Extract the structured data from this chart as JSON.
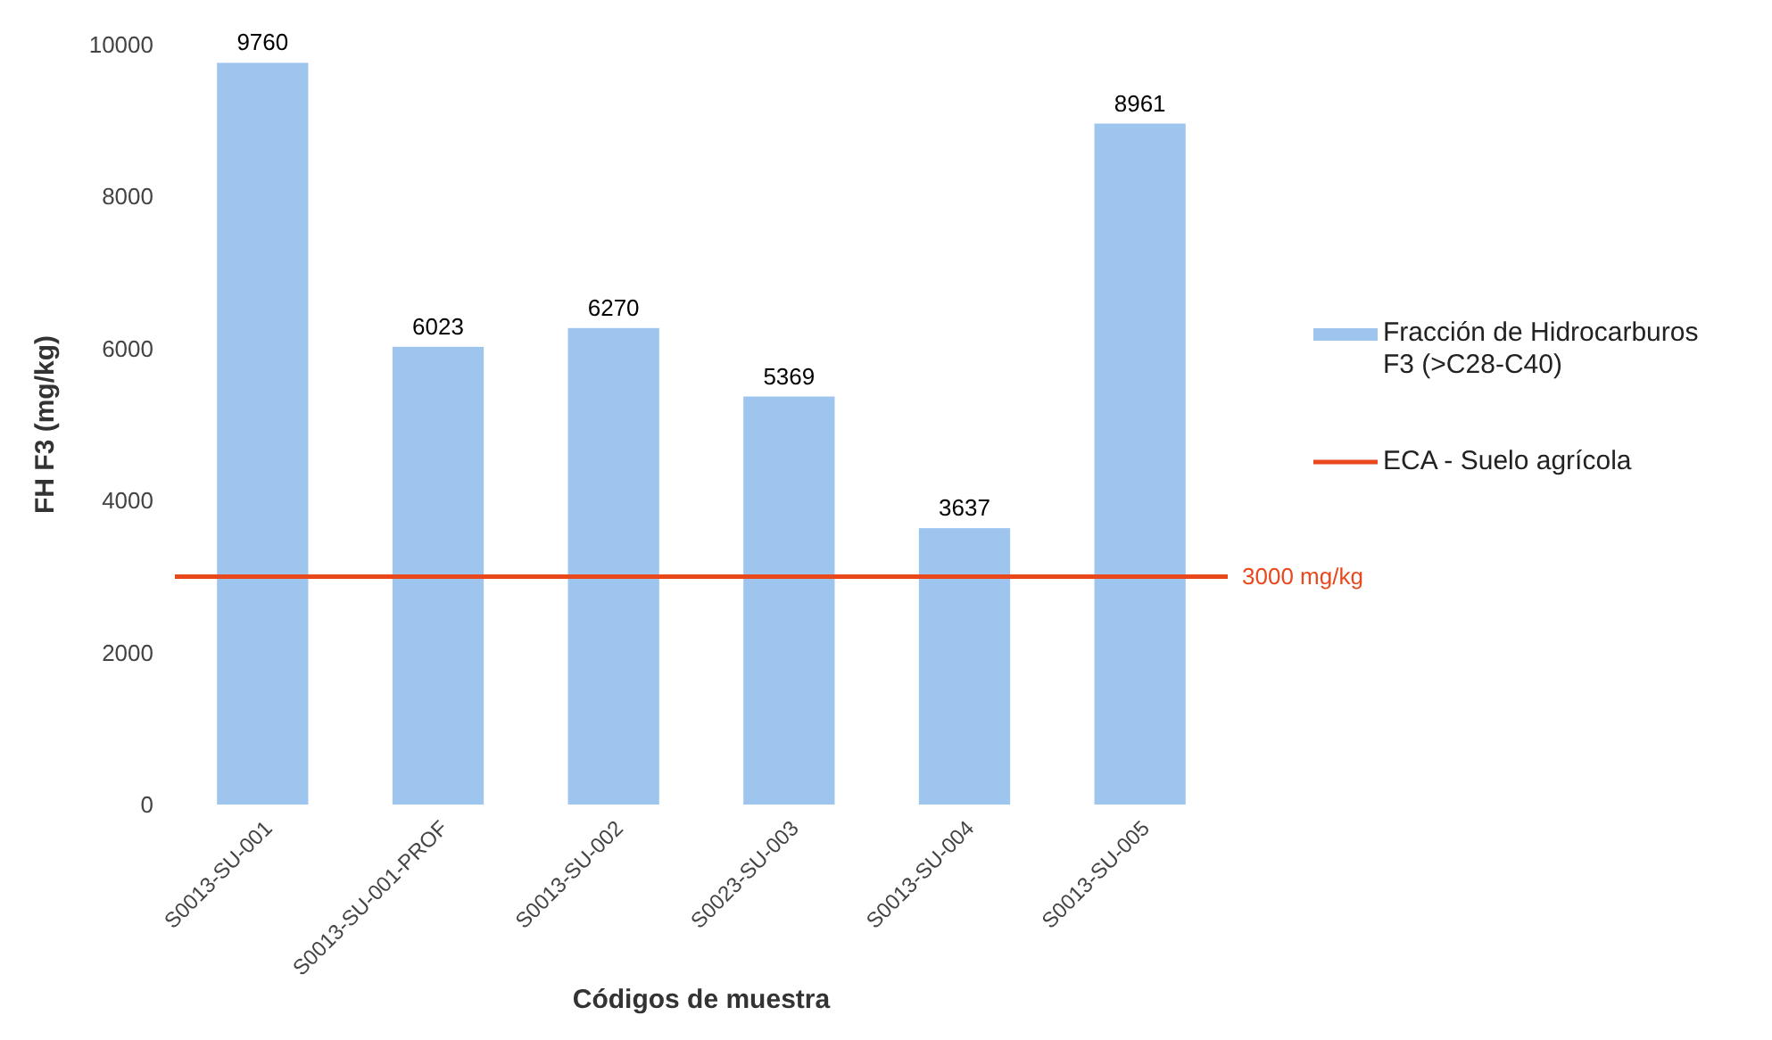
{
  "chart_data": {
    "type": "bar",
    "xlabel": "Códigos de muestra",
    "ylabel": "FH F3 (mg/kg)",
    "categories": [
      "S0013-SU-001",
      "S0013-SU-001-PROF",
      "S0013-SU-002",
      "S0023-SU-003",
      "S0013-SU-004",
      "S0013-SU-005"
    ],
    "series": [
      {
        "name": "Fracción de Hidrocarburos F3 (>C28-C40)",
        "color": "#9dc5ee",
        "values": [
          9760,
          6023,
          6270,
          5369,
          3637,
          8961
        ]
      }
    ],
    "ref_lines": [
      {
        "axis": "y",
        "value": 3000,
        "label": "3000 mg/kg",
        "color": "#e8481c"
      }
    ],
    "annotations": [
      "ECA - Suelo agrícola"
    ],
    "data_labels": true,
    "ylim": [
      0,
      10000
    ],
    "yticks": [
      0,
      2000,
      4000,
      6000,
      8000,
      10000
    ],
    "legend": "right"
  }
}
